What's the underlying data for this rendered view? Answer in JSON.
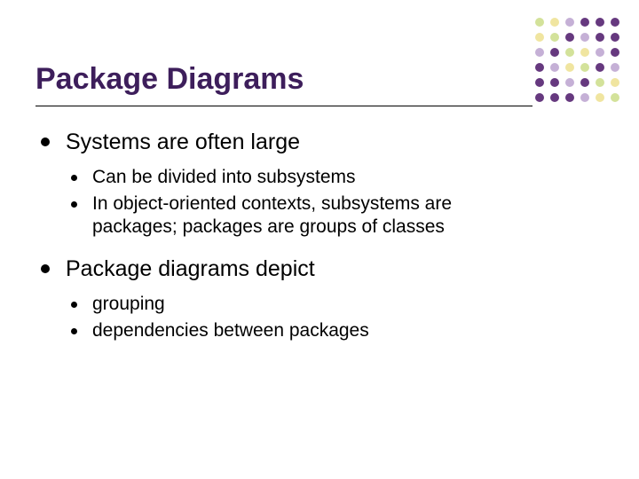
{
  "title": {
    "text": "Package Diagrams",
    "color": "#3d1e5b",
    "fontsize": 34
  },
  "divider_color": "#000000",
  "background_color": "#ffffff",
  "bullets": [
    {
      "text": "Systems are often large",
      "sub": [
        "Can be divided into subsystems",
        "In object-oriented contexts, subsystems are packages; packages are groups of classes"
      ]
    },
    {
      "text": "Package diagrams depict",
      "sub": [
        "grouping",
        "dependencies between packages"
      ]
    }
  ],
  "dot_grid": {
    "rows": 6,
    "cols": 6,
    "colors": [
      [
        "#d3e29a",
        "#f0e5a0",
        "#c5b0d6",
        "#66397f",
        "#66397f",
        "#66397f"
      ],
      [
        "#f0e5a0",
        "#d3e29a",
        "#66397f",
        "#c5b0d6",
        "#66397f",
        "#66397f"
      ],
      [
        "#c5b0d6",
        "#66397f",
        "#d3e29a",
        "#f0e5a0",
        "#c5b0d6",
        "#66397f"
      ],
      [
        "#66397f",
        "#c5b0d6",
        "#f0e5a0",
        "#d3e29a",
        "#66397f",
        "#c5b0d6"
      ],
      [
        "#66397f",
        "#66397f",
        "#c5b0d6",
        "#66397f",
        "#d3e29a",
        "#f0e5a0"
      ],
      [
        "#66397f",
        "#66397f",
        "#66397f",
        "#c5b0d6",
        "#f0e5a0",
        "#d3e29a"
      ]
    ]
  }
}
